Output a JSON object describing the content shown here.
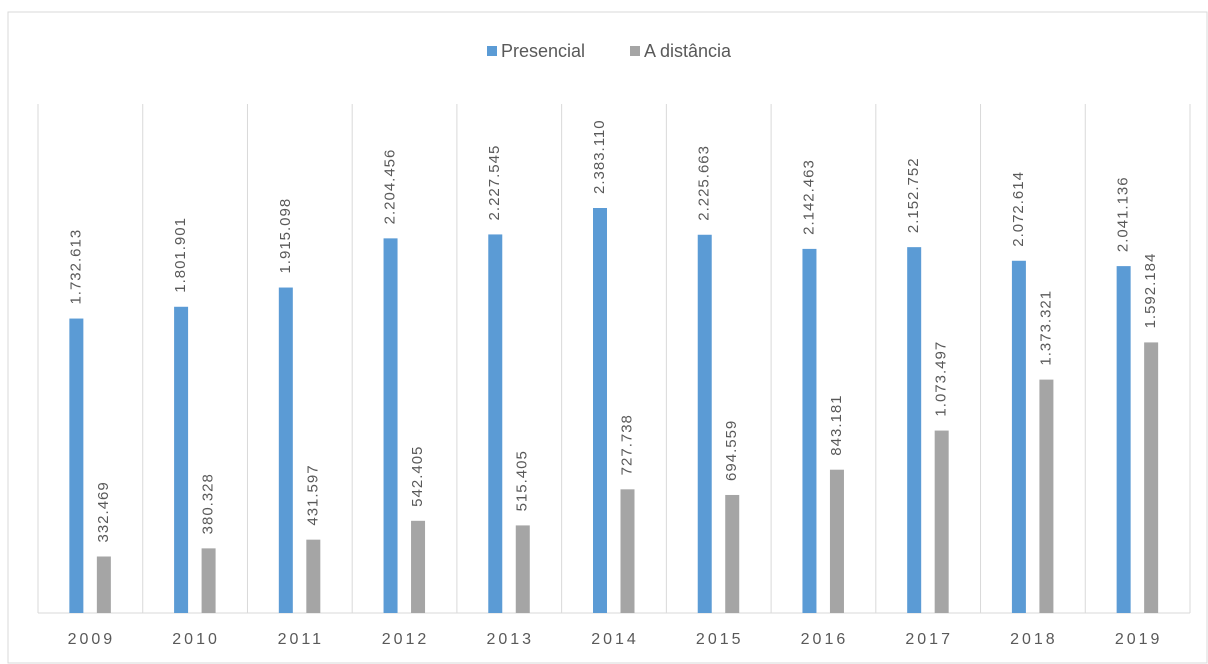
{
  "chart_data": {
    "type": "bar",
    "categories": [
      "2009",
      "2010",
      "2011",
      "2012",
      "2013",
      "2014",
      "2015",
      "2016",
      "2017",
      "2018",
      "2019"
    ],
    "series": [
      {
        "name": "Presencial",
        "color": "#5b9bd5",
        "values": [
          1732613,
          1801901,
          1915098,
          2204456,
          2227545,
          2383110,
          2225663,
          2142463,
          2152752,
          2072614,
          2041136
        ],
        "value_labels": [
          "1.732.613",
          "1.801.901",
          "1.915.098",
          "2.204.456",
          "2.227.545",
          "2.383.110",
          "2.225.663",
          "2.142.463",
          "2.152.752",
          "2.072.614",
          "2.041.136"
        ]
      },
      {
        "name": "A distância",
        "color": "#a5a5a5",
        "values": [
          332469,
          380328,
          431597,
          542405,
          515405,
          727738,
          694559,
          843181,
          1073497,
          1373321,
          1592184
        ],
        "value_labels": [
          "332.469",
          "380.328",
          "431.597",
          "542.405",
          "515.405",
          "727.738",
          "694.559",
          "843.181",
          "1.073.497",
          "1.373.321",
          "1.592.184"
        ]
      }
    ],
    "legend": "top"
  }
}
